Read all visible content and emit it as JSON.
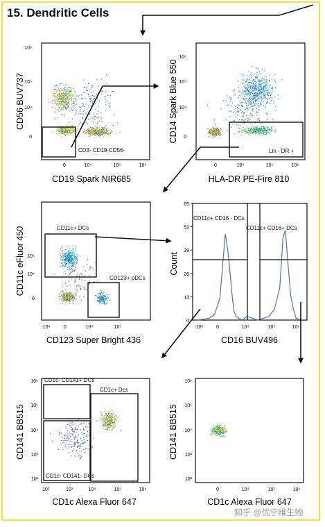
{
  "title": "15. Dendritic Cells",
  "watermark": "知乎 @优宁维生物",
  "colors": {
    "frame": "#f2e33a",
    "axis": "#111111",
    "histogram": "#5470b5",
    "scatter_low": "#3050d0",
    "scatter_high": "#e02020"
  },
  "chart_data": [
    {
      "type": "scatter",
      "xlabel": "CD19 Spark NIR685",
      "ylabel": "CD56 BUV737",
      "x_ticks": [
        "0",
        "10⁴",
        "10⁵",
        "10⁶"
      ],
      "y_ticks": [
        "10⁶",
        "10⁵",
        "10⁴",
        "0"
      ],
      "x_scale": "biexponential",
      "y_scale": "biexponential",
      "populations": [
        {
          "x": "~0",
          "y": "~5×10⁴"
        },
        {
          "x": "~0",
          "y": "~0"
        },
        {
          "x": "~3×10⁴",
          "y": "~0"
        }
      ],
      "gates": [
        {
          "label": "CD3- CD19-CD56-"
        }
      ]
    },
    {
      "type": "scatter",
      "xlabel": "HLA-DR PE-Fire 810",
      "ylabel": "CD14 Spark Blue 550",
      "x_ticks": [
        "0",
        "10⁴",
        "10⁵",
        "10⁶"
      ],
      "y_ticks": [
        "10⁶",
        "10⁵",
        "10⁴",
        "0"
      ],
      "x_scale": "biexponential",
      "y_scale": "biexponential",
      "populations": [
        {
          "x": "~0",
          "y": "~0"
        },
        {
          "x": "~5×10⁴",
          "y": "~0"
        },
        {
          "x": "~5×10⁴",
          "y": "~10⁵"
        }
      ],
      "gates": [
        {
          "label": "Lin - DR +"
        }
      ]
    },
    {
      "type": "scatter",
      "xlabel": "CD123 Super Bright 436",
      "ylabel": "CD11c eFluor 450",
      "x_ticks": [
        "-10⁴",
        "0",
        "10⁴",
        "10⁵"
      ],
      "y_ticks": [
        "10⁵",
        "10⁴",
        "0"
      ],
      "x_scale": "biexponential",
      "y_scale": "biexponential",
      "populations": [
        {
          "x": "~0",
          "y": "~3×10⁴"
        },
        {
          "x": "~0",
          "y": "~0"
        },
        {
          "x": "~4×10⁴",
          "y": "~0"
        }
      ],
      "gates": [
        {
          "label": "CD11c+ DCs"
        },
        {
          "label": "CD123+ pDCs"
        }
      ]
    },
    {
      "type": "line",
      "xlabel": "CD16 BUV496",
      "ylabel": "Count",
      "x_ticks": [
        "-10⁴",
        "0",
        "10⁴",
        "10⁵",
        "10⁶"
      ],
      "y_ticks": [
        "65",
        "52",
        "39",
        "26",
        "13",
        "0"
      ],
      "ylim": [
        0,
        65
      ],
      "series": [
        {
          "x": [
            -6,
            -4,
            -3,
            -2,
            -1.5,
            -1,
            -0.5,
            0,
            0.3,
            0.6,
            1,
            1.5,
            2,
            3,
            4,
            5,
            6,
            7,
            8,
            9,
            9.3,
            9.6,
            10,
            10.3,
            10.6,
            11,
            11.5,
            12,
            13
          ],
          "y": [
            0,
            1,
            3,
            12,
            30,
            48,
            38,
            22,
            12,
            5,
            2,
            1,
            0,
            2,
            1,
            0,
            1,
            2,
            6,
            18,
            32,
            46,
            50,
            40,
            28,
            14,
            6,
            1,
            0
          ]
        }
      ],
      "gates": [
        {
          "label": "CD11c+ CD16 - DCs"
        },
        {
          "label": "CD11c+ CD16+ DCs"
        }
      ]
    },
    {
      "type": "scatter",
      "xlabel": "CD1c Alexa Fluor 647",
      "ylabel": "CD141 BB515",
      "x_ticks": [
        "10²",
        "10³",
        "10⁴",
        "10⁵",
        "10⁶"
      ],
      "y_ticks": [
        "10⁶",
        "10⁵",
        "10⁴",
        "10³",
        "10²"
      ],
      "x_scale": "log",
      "y_scale": "log",
      "populations": [
        {
          "x": "~3×10⁴",
          "y": "~2×10⁴"
        }
      ],
      "gates": [
        {
          "label": "CD1c- CD141+ DCs"
        },
        {
          "label": "CD1c+ Dcs"
        },
        {
          "label": "CD1c- CD141- DCs"
        }
      ]
    },
    {
      "type": "scatter",
      "xlabel": "CD1c Alexa Fluor 647",
      "ylabel": "CD141 BB515",
      "x_ticks": [
        "0",
        "10⁴",
        "10⁵",
        "10⁶"
      ],
      "y_ticks": [
        "10⁶",
        "10⁵",
        "10⁴",
        "10³",
        "10²"
      ],
      "x_scale": "biexponential",
      "y_scale": "log",
      "populations": [
        {
          "x": "~0",
          "y": "~10⁴"
        }
      ],
      "gates": []
    }
  ]
}
